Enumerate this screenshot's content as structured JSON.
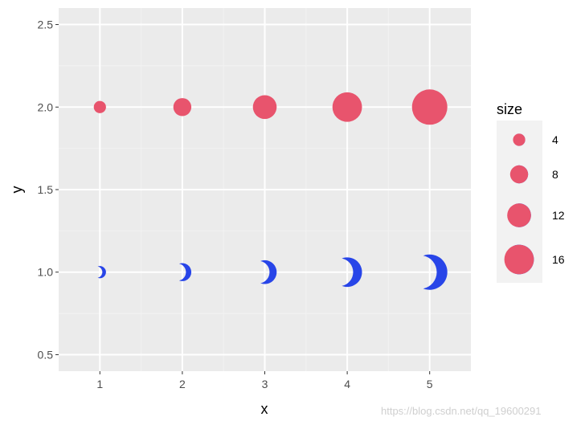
{
  "chart_data": {
    "type": "scatter",
    "xlabel": "x",
    "ylabel": "y",
    "xlim": [
      0.5,
      5.5
    ],
    "ylim": [
      0.4,
      2.6
    ],
    "x_ticks": [
      "1",
      "2",
      "3",
      "4",
      "5"
    ],
    "y_ticks": [
      "0.5",
      "1.0",
      "1.5",
      "2.0",
      "2.5"
    ],
    "x_tick_values": [
      1,
      2,
      3,
      4,
      5
    ],
    "y_tick_values": [
      0.5,
      1.0,
      1.5,
      2.0,
      2.5
    ],
    "grid": true,
    "series": [
      {
        "marker": "circle",
        "color": "#E8546D",
        "x": [
          1,
          2,
          3,
          4,
          5
        ],
        "y": [
          2,
          2,
          2,
          2,
          2
        ],
        "size": [
          4,
          8,
          12,
          16,
          20
        ]
      },
      {
        "marker": "crescent",
        "color": "#2845E8",
        "x": [
          1,
          2,
          3,
          4,
          5
        ],
        "y": [
          1,
          1,
          1,
          1,
          1
        ],
        "size": [
          4,
          8,
          12,
          16,
          20
        ]
      }
    ],
    "legend": {
      "title": "size",
      "position": "right",
      "entries": [
        {
          "label": "4",
          "size": 4
        },
        {
          "label": "8",
          "size": 8
        },
        {
          "label": "12",
          "size": 12
        },
        {
          "label": "16",
          "size": 16
        }
      ]
    },
    "colors": {
      "panel_background": "#EBEBEB",
      "grid_major": "#FFFFFF",
      "grid_minor": "#F2F2F2",
      "circle": "#E8546D",
      "crescent": "#2845E8"
    }
  },
  "watermark": "https://blog.csdn.net/qq_19600291"
}
